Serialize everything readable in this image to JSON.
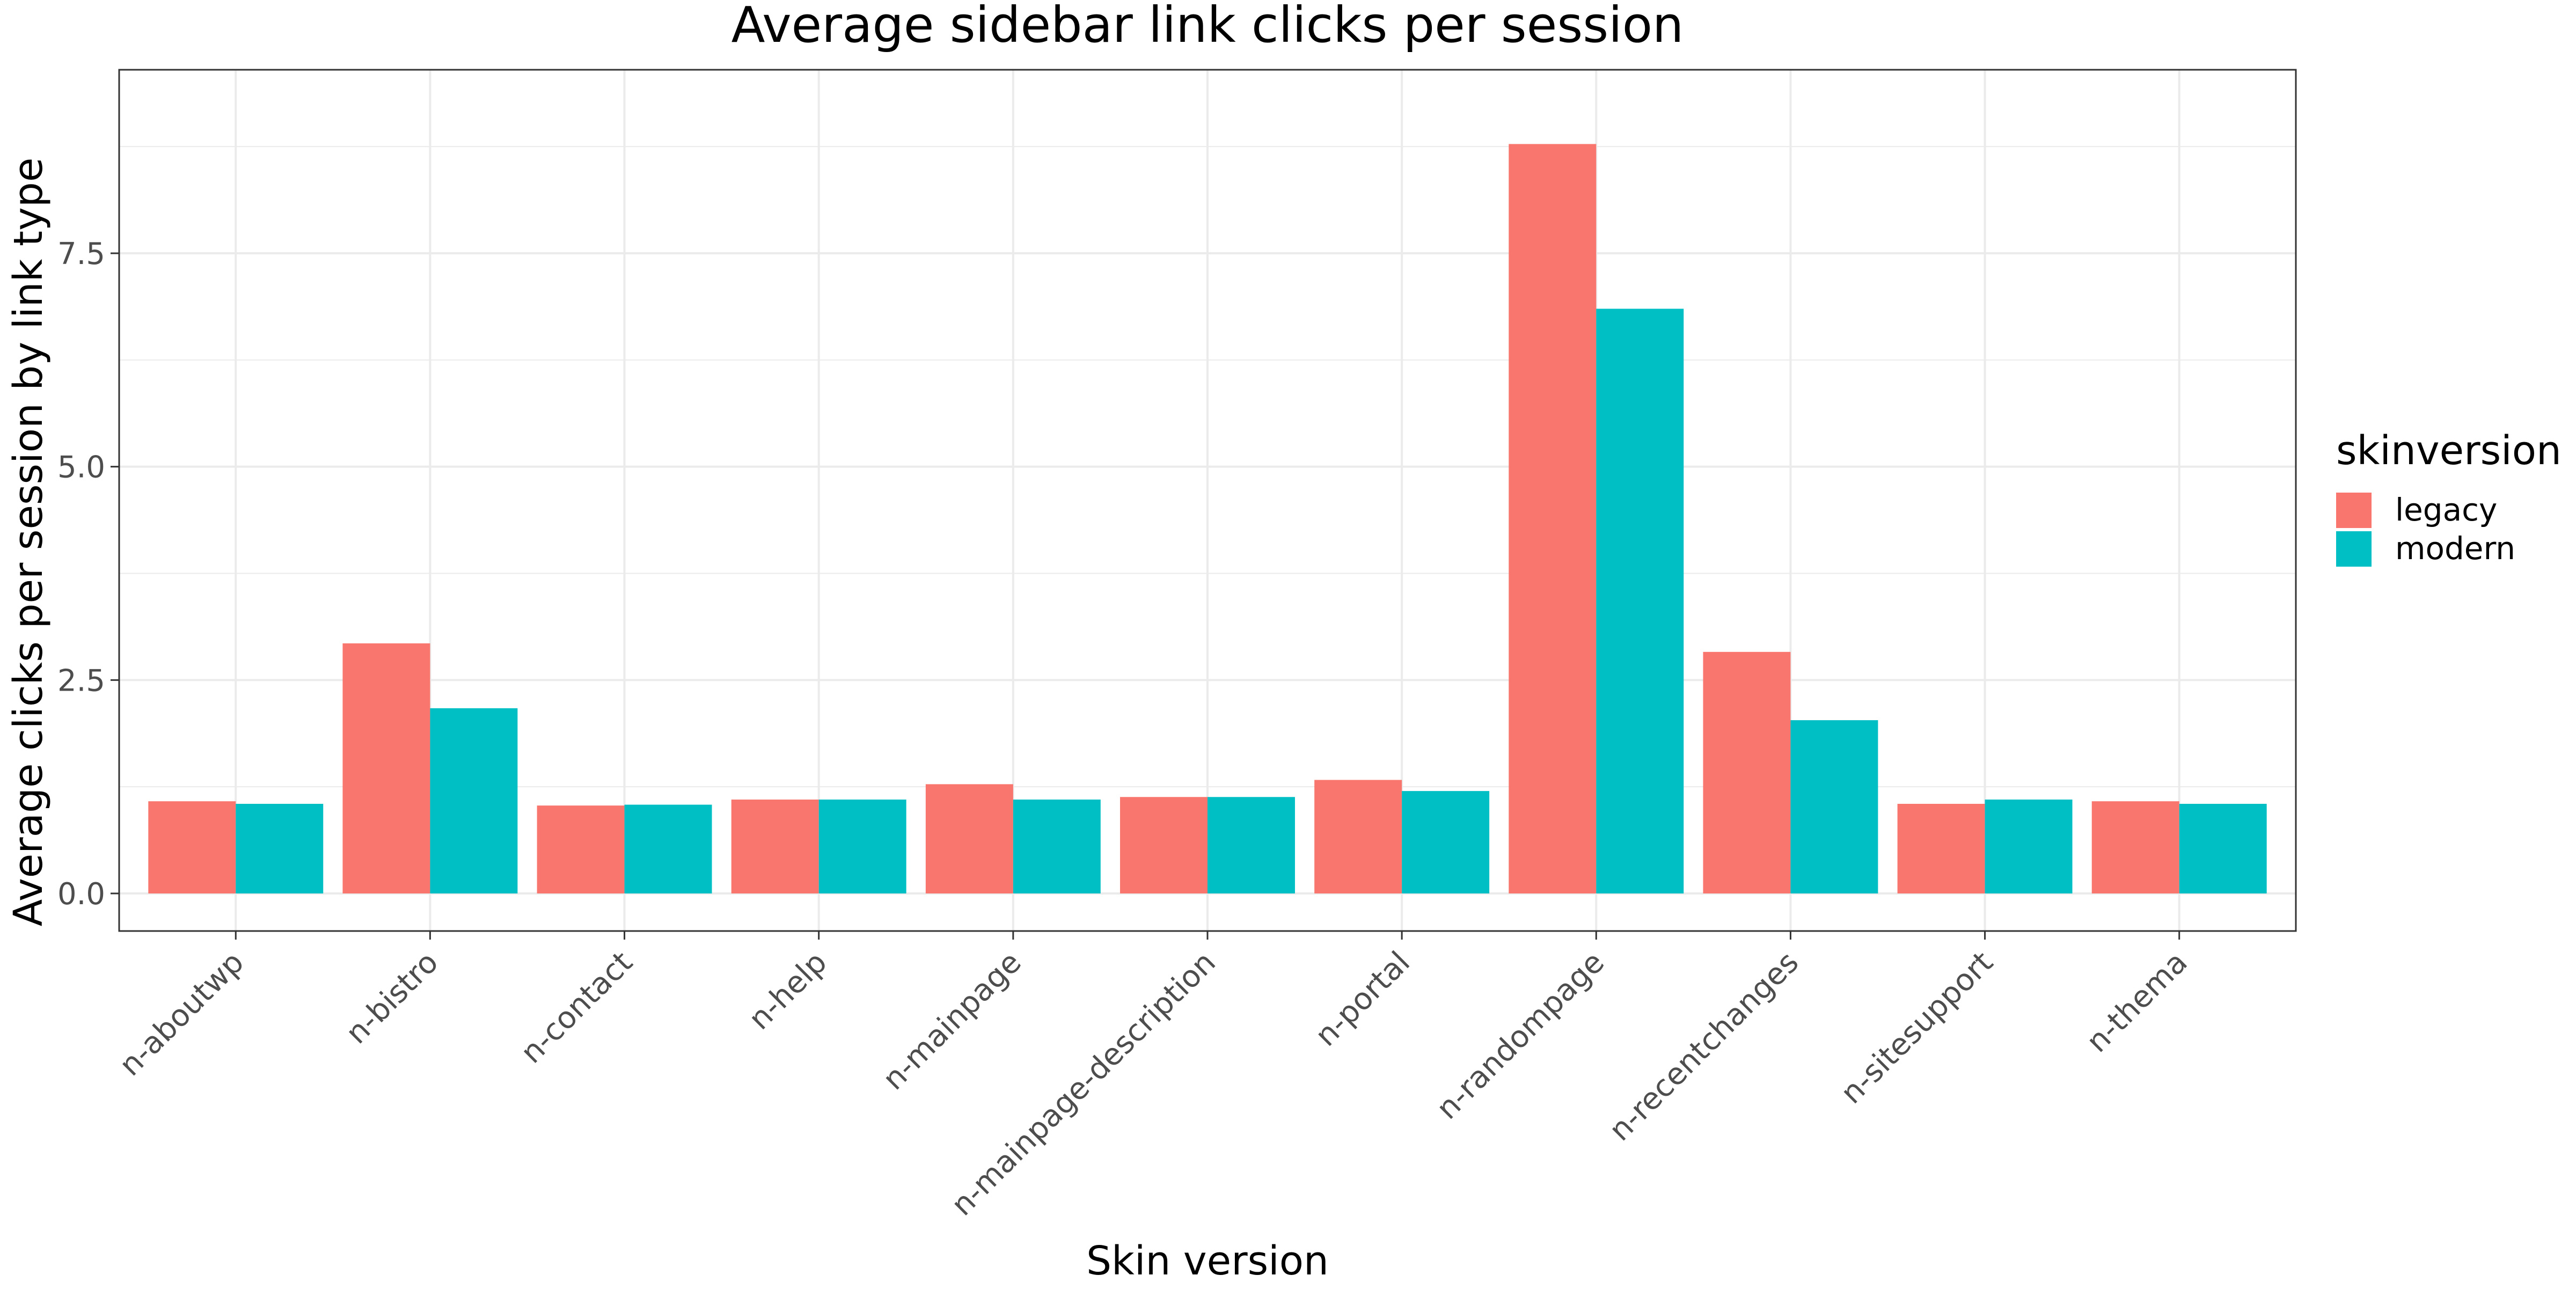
{
  "chart_data": {
    "type": "bar",
    "title": "Average sidebar link clicks per session",
    "xlabel": "Skin version",
    "ylabel": "Average clicks per session by link type",
    "categories": [
      "n-aboutwp",
      "n-bistro",
      "n-contact",
      "n-help",
      "n-mainpage",
      "n-mainpage-description",
      "n-portal",
      "n-randompage",
      "n-recentchanges",
      "n-sitesupport",
      "n-thema"
    ],
    "series": [
      {
        "name": "legacy",
        "color": "#F8766D",
        "values": [
          1.08,
          2.93,
          1.03,
          1.1,
          1.28,
          1.13,
          1.33,
          8.78,
          2.83,
          1.05,
          1.08
        ]
      },
      {
        "name": "modern",
        "color": "#00BFC4",
        "values": [
          1.05,
          2.17,
          1.04,
          1.1,
          1.1,
          1.13,
          1.2,
          6.85,
          2.03,
          1.1,
          1.05
        ]
      }
    ],
    "ylim": [
      -0.44,
      9.65
    ],
    "yticks": [
      0.0,
      2.5,
      5.0,
      7.5
    ],
    "ytick_labels": [
      "0.0",
      "2.5",
      "5.0",
      "7.5"
    ],
    "grid": true,
    "legend": {
      "title": "skinversion",
      "position": "right"
    }
  }
}
